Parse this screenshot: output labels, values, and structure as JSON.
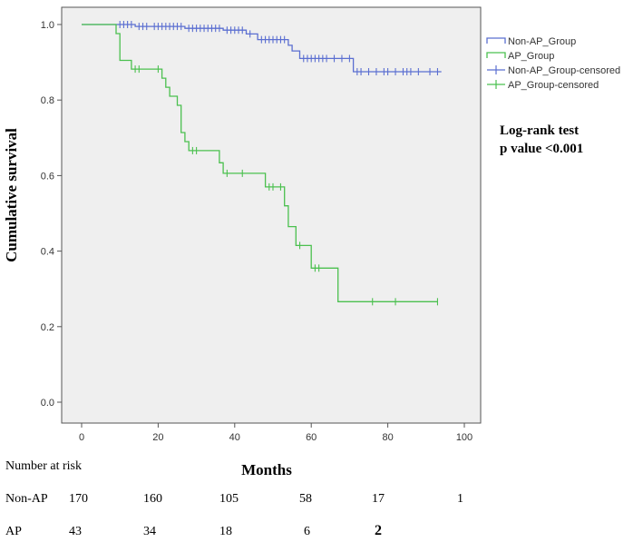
{
  "chart_data": {
    "type": "line",
    "subtype": "kaplan-meier",
    "xlabel": "Months",
    "ylabel": "Cumulative survival",
    "xlim": [
      0,
      100
    ],
    "ylim": [
      -0.03,
      1.03
    ],
    "x_ticks": [
      0,
      20,
      40,
      60,
      80,
      100
    ],
    "x_tick_labels": [
      "0",
      "20",
      "40",
      "60",
      "80",
      "100"
    ],
    "y_ticks": [
      0.0,
      0.2,
      0.4,
      0.6,
      0.8,
      1.0
    ],
    "y_tick_labels": [
      "0.0",
      "0.2",
      "0.4",
      "0.6",
      "0.8",
      "1.0"
    ],
    "background": "#efefef",
    "series": [
      {
        "name": "Non-AP_Group",
        "color": "#5b6fd1",
        "steps": [
          [
            0,
            1.0
          ],
          [
            14,
            1.0
          ],
          [
            14,
            0.995
          ],
          [
            27,
            0.995
          ],
          [
            27,
            0.99
          ],
          [
            37,
            0.99
          ],
          [
            37,
            0.985
          ],
          [
            43,
            0.985
          ],
          [
            43,
            0.975
          ],
          [
            46,
            0.975
          ],
          [
            46,
            0.96
          ],
          [
            54,
            0.96
          ],
          [
            54,
            0.945
          ],
          [
            55,
            0.945
          ],
          [
            55,
            0.93
          ],
          [
            57,
            0.93
          ],
          [
            57,
            0.91
          ],
          [
            71,
            0.91
          ],
          [
            71,
            0.875
          ],
          [
            94,
            0.875
          ]
        ],
        "censored_name": "Non-AP_Group-censored",
        "censored": [
          [
            10,
            1.0
          ],
          [
            11,
            1.0
          ],
          [
            12,
            1.0
          ],
          [
            13,
            1.0
          ],
          [
            15,
            0.995
          ],
          [
            16,
            0.995
          ],
          [
            17,
            0.995
          ],
          [
            19,
            0.995
          ],
          [
            20,
            0.995
          ],
          [
            21,
            0.995
          ],
          [
            22,
            0.995
          ],
          [
            23,
            0.995
          ],
          [
            24,
            0.995
          ],
          [
            25,
            0.995
          ],
          [
            26,
            0.995
          ],
          [
            28,
            0.99
          ],
          [
            29,
            0.99
          ],
          [
            30,
            0.99
          ],
          [
            31,
            0.99
          ],
          [
            32,
            0.99
          ],
          [
            33,
            0.99
          ],
          [
            34,
            0.99
          ],
          [
            35,
            0.99
          ],
          [
            36,
            0.99
          ],
          [
            38,
            0.985
          ],
          [
            39,
            0.985
          ],
          [
            40,
            0.985
          ],
          [
            41,
            0.985
          ],
          [
            42,
            0.985
          ],
          [
            44,
            0.975
          ],
          [
            47,
            0.96
          ],
          [
            48,
            0.96
          ],
          [
            49,
            0.96
          ],
          [
            50,
            0.96
          ],
          [
            51,
            0.96
          ],
          [
            52,
            0.96
          ],
          [
            53,
            0.96
          ],
          [
            58,
            0.91
          ],
          [
            59,
            0.91
          ],
          [
            60,
            0.91
          ],
          [
            61,
            0.91
          ],
          [
            62,
            0.91
          ],
          [
            63,
            0.91
          ],
          [
            64,
            0.91
          ],
          [
            66,
            0.91
          ],
          [
            68,
            0.91
          ],
          [
            70,
            0.91
          ],
          [
            72,
            0.875
          ],
          [
            73,
            0.875
          ],
          [
            75,
            0.875
          ],
          [
            77,
            0.875
          ],
          [
            79,
            0.875
          ],
          [
            80,
            0.875
          ],
          [
            82,
            0.875
          ],
          [
            84,
            0.875
          ],
          [
            85,
            0.875
          ],
          [
            86,
            0.875
          ],
          [
            88,
            0.875
          ],
          [
            91,
            0.875
          ],
          [
            93,
            0.875
          ]
        ]
      },
      {
        "name": "AP_Group",
        "color": "#4bc04f",
        "steps": [
          [
            0,
            1.0
          ],
          [
            9,
            1.0
          ],
          [
            9,
            0.976
          ],
          [
            10,
            0.976
          ],
          [
            10,
            0.905
          ],
          [
            13,
            0.905
          ],
          [
            13,
            0.882
          ],
          [
            21,
            0.882
          ],
          [
            21,
            0.858
          ],
          [
            22,
            0.858
          ],
          [
            22,
            0.834
          ],
          [
            23,
            0.834
          ],
          [
            23,
            0.81
          ],
          [
            25,
            0.81
          ],
          [
            25,
            0.786
          ],
          [
            26,
            0.786
          ],
          [
            26,
            0.714
          ],
          [
            27,
            0.714
          ],
          [
            27,
            0.69
          ],
          [
            28,
            0.69
          ],
          [
            28,
            0.666
          ],
          [
            36,
            0.666
          ],
          [
            36,
            0.634
          ],
          [
            37,
            0.634
          ],
          [
            37,
            0.606
          ],
          [
            48,
            0.606
          ],
          [
            48,
            0.57
          ],
          [
            53,
            0.57
          ],
          [
            53,
            0.52
          ],
          [
            54,
            0.52
          ],
          [
            54,
            0.465
          ],
          [
            56,
            0.465
          ],
          [
            56,
            0.415
          ],
          [
            60,
            0.415
          ],
          [
            60,
            0.355
          ],
          [
            67,
            0.355
          ],
          [
            67,
            0.266
          ],
          [
            93,
            0.266
          ]
        ],
        "censored_name": "AP_Group-censored",
        "censored": [
          [
            14,
            0.882
          ],
          [
            15,
            0.882
          ],
          [
            20,
            0.882
          ],
          [
            29,
            0.666
          ],
          [
            30,
            0.666
          ],
          [
            38,
            0.606
          ],
          [
            42,
            0.606
          ],
          [
            49,
            0.57
          ],
          [
            50,
            0.57
          ],
          [
            52,
            0.57
          ],
          [
            57,
            0.415
          ],
          [
            61,
            0.355
          ],
          [
            62,
            0.355
          ],
          [
            76,
            0.266
          ],
          [
            82,
            0.266
          ],
          [
            93,
            0.266
          ]
        ]
      }
    ],
    "legend": {
      "placement": "top-right",
      "entries": [
        "Non-AP_Group",
        "AP_Group",
        "Non-AP_Group-censored",
        "AP_Group-censored"
      ]
    },
    "annotation": {
      "line1": "Log-rank test",
      "line2": "p value <0.001"
    }
  },
  "risk_table": {
    "title": "Number at risk",
    "rows": [
      {
        "label": "Non-AP",
        "values": [
          "170",
          "160",
          "105",
          "58",
          "17",
          "1"
        ]
      },
      {
        "label": "AP",
        "values": [
          "43",
          "34",
          "18",
          "6",
          "2"
        ]
      }
    ]
  }
}
